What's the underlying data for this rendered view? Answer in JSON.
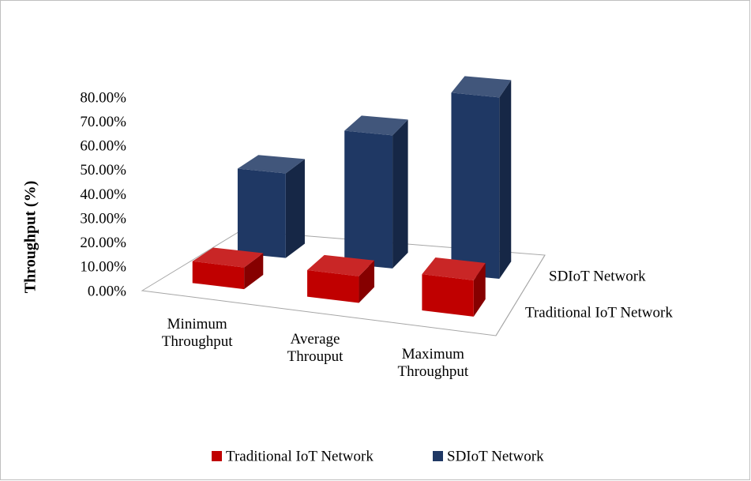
{
  "chart_data": {
    "type": "bar3d",
    "y_label": "Throughput (%)",
    "categories": [
      "Minimum Throughput",
      "Average Throuput",
      "Maximum Throughput"
    ],
    "series": [
      {
        "name": "Traditional IoT Network",
        "color": "#c00000",
        "values": [
          9,
          11,
          15
        ]
      },
      {
        "name": "SDIoT Network",
        "color": "#1f3864",
        "values": [
          35,
          55,
          75
        ]
      }
    ],
    "ylim": [
      0,
      80
    ],
    "yticks": [
      {
        "value": 0,
        "label": "0.00%"
      },
      {
        "value": 10,
        "label": "10.00%"
      },
      {
        "value": 20,
        "label": "20.00%"
      },
      {
        "value": 30,
        "label": "30.00%"
      },
      {
        "value": 40,
        "label": "40.00%"
      },
      {
        "value": 50,
        "label": "50.00%"
      },
      {
        "value": 60,
        "label": "60.00%"
      },
      {
        "value": 70,
        "label": "70.00%"
      },
      {
        "value": 80,
        "label": "80.00%"
      }
    ],
    "grid": false,
    "legend": "bottom"
  }
}
